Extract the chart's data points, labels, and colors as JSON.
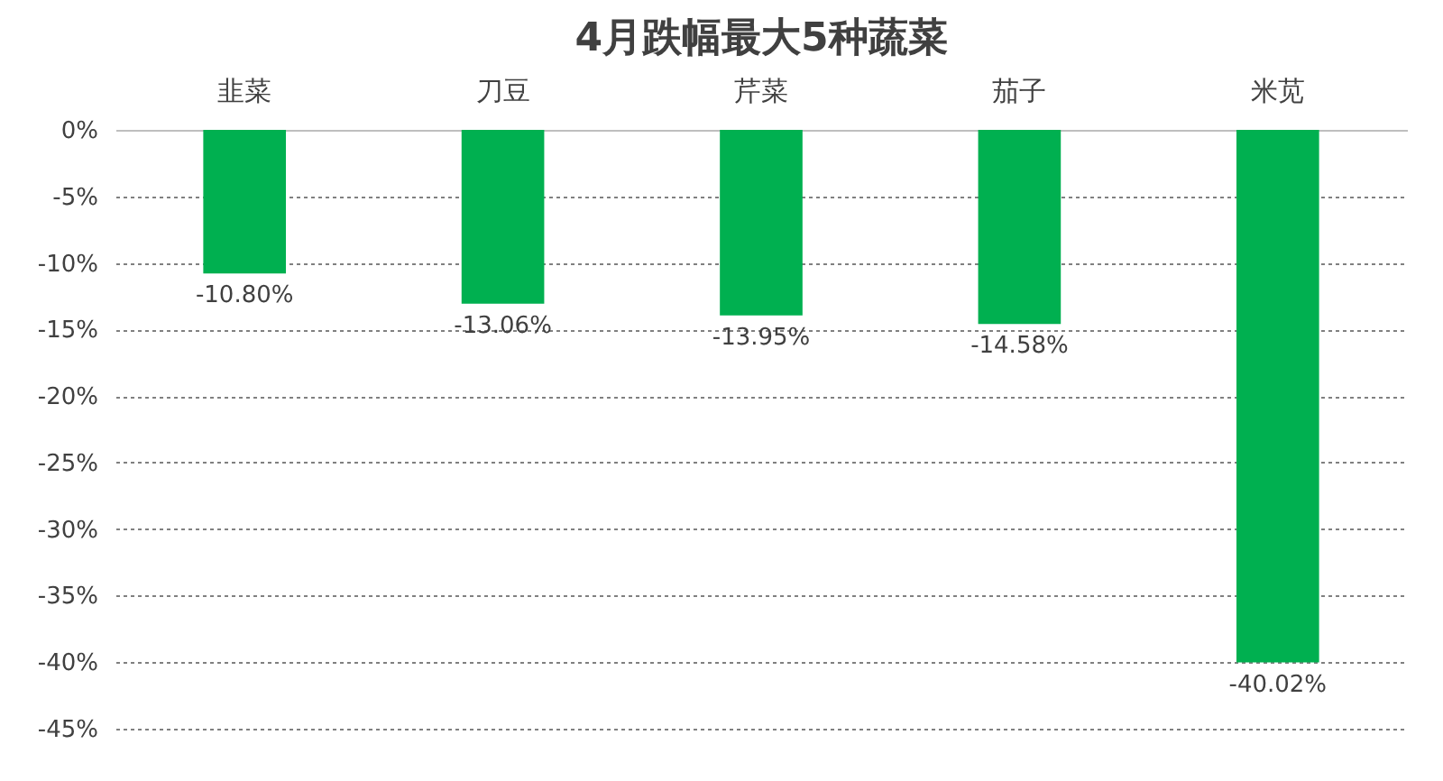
{
  "chart_data": {
    "type": "bar",
    "title": "4月跌幅最大5种蔬菜",
    "categories": [
      "韭菜",
      "刀豆",
      "芹菜",
      "茄子",
      "米苋"
    ],
    "values": [
      -10.8,
      -13.06,
      -13.95,
      -14.58,
      -40.02
    ],
    "value_labels": [
      "-10.80%",
      "-13.06%",
      "-13.95%",
      "-14.58%",
      "-40.02%"
    ],
    "color": "#00b050",
    "ylim": [
      -45,
      0
    ],
    "yticks": [
      {
        "value": 0,
        "label": "0%"
      },
      {
        "value": -5,
        "label": "-5%"
      },
      {
        "value": -10,
        "label": "-10%"
      },
      {
        "value": -15,
        "label": "-15%"
      },
      {
        "value": -20,
        "label": "-20%"
      },
      {
        "value": -25,
        "label": "-25%"
      },
      {
        "value": -30,
        "label": "-30%"
      },
      {
        "value": -35,
        "label": "-35%"
      },
      {
        "value": -40,
        "label": "-40%"
      },
      {
        "value": -45,
        "label": "-45%"
      }
    ],
    "grid": "y"
  }
}
